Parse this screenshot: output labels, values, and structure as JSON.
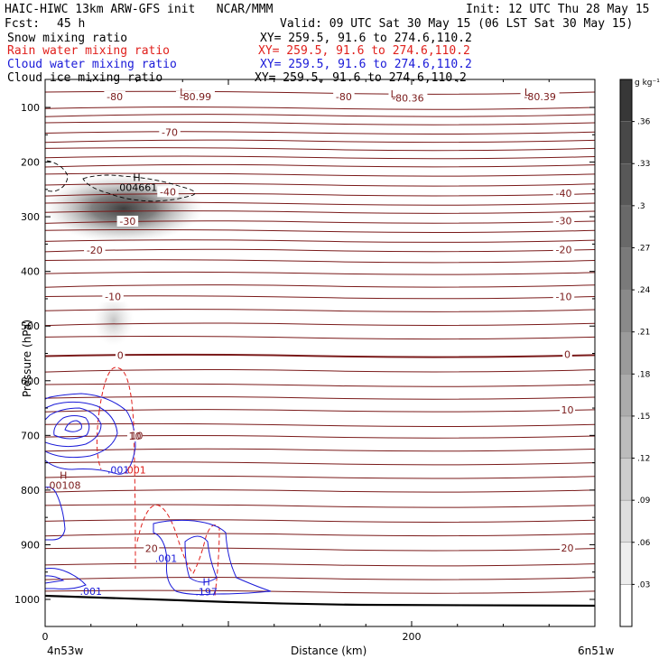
{
  "header": {
    "model_line": "HAIC-HIWC 13km ARW-GFS init   NCAR/MMM",
    "init_line": "Init: 12 UTC Thu 28 May 15",
    "fcst_label": "Fcst:",
    "fcst_value": "45 h",
    "valid_line": "Valid: 09 UTC Sat 30 May 15 (06 LST Sat 30 May 15)"
  },
  "fields": [
    {
      "name": "Snow mixing ratio",
      "xy": "XY= 259.5, 91.6 to 274.6,110.2",
      "color": "#000000"
    },
    {
      "name": "Rain water mixing ratio",
      "xy": "XY= 259.5, 91.6 to 274.6,110.2",
      "color": "#e0201c"
    },
    {
      "name": "Cloud water mixing ratio",
      "xy": "XY= 259.5, 91.6 to 274.6,110.2",
      "color": "#1a1ad8"
    },
    {
      "name": "Cloud ice mixing ratio",
      "xy": "XY= 259.5, 91.6 to 274.6,110.2",
      "color": "#000000"
    }
  ],
  "footer": {
    "left_label": "4n53w",
    "right_label": "6n51w"
  },
  "chart_data": {
    "type": "heatmap",
    "xlabel": "Distance (km)",
    "ylabel": "Pressure (hPa)",
    "xlim": [
      0,
      300
    ],
    "ylim": [
      1050,
      50
    ],
    "x_ticks": [
      0,
      200
    ],
    "y_ticks": [
      100,
      200,
      300,
      400,
      500,
      600,
      700,
      800,
      900,
      1000
    ],
    "colorbar": {
      "unit": "g kg⁻¹",
      "ticks": [
        0.03,
        0.06,
        0.09,
        0.12,
        0.15,
        0.18,
        0.21,
        0.24,
        0.27,
        0.3,
        0.33,
        0.36
      ],
      "tick_labels": [
        ".03",
        ".06",
        ".09",
        ".12",
        ".15",
        ".18",
        ".21",
        ".24",
        ".27",
        ".3",
        ".33",
        ".36"
      ],
      "range": [
        0,
        0.39
      ]
    },
    "temperature_contours": {
      "color": "#7a1a1a",
      "labels": [
        {
          "text": "-80",
          "x": 38,
          "p": 80
        },
        {
          "text": "-80.99",
          "x": 82,
          "p": 80
        },
        {
          "text": "-80",
          "x": 163,
          "p": 80
        },
        {
          "text": "-80.36",
          "x": 198,
          "p": 83
        },
        {
          "text": "-80.39",
          "x": 270,
          "p": 80
        },
        {
          "text": "-70",
          "x": 68,
          "p": 145
        },
        {
          "text": "-40",
          "x": 67,
          "p": 254
        },
        {
          "text": "-40",
          "x": 283,
          "p": 257
        },
        {
          "text": "-30",
          "x": 45,
          "p": 308
        },
        {
          "text": "-30",
          "x": 283,
          "p": 307
        },
        {
          "text": "-20",
          "x": 27,
          "p": 361
        },
        {
          "text": "-20",
          "x": 283,
          "p": 360
        },
        {
          "text": "-10",
          "x": 37,
          "p": 446
        },
        {
          "text": "-10",
          "x": 283,
          "p": 446
        },
        {
          "text": "0",
          "x": 41,
          "p": 553
        },
        {
          "text": "0",
          "x": 285,
          "p": 552
        },
        {
          "text": "10",
          "x": 49,
          "p": 701
        },
        {
          "text": "10",
          "x": 285,
          "p": 653
        },
        {
          "text": "20",
          "x": 58,
          "p": 907
        },
        {
          "text": "20",
          "x": 285,
          "p": 906
        }
      ],
      "lows": [
        {
          "text": "L",
          "x": 75,
          "p": 72
        },
        {
          "text": "L",
          "x": 190,
          "p": 75
        },
        {
          "text": "L",
          "x": 263,
          "p": 72
        }
      ]
    },
    "snow_max": {
      "text": "H",
      "label": ".004661",
      "x": 50,
      "p": 238
    },
    "cloud_water_labels": [
      {
        "text": ".001",
        "x": 40,
        "p": 763
      },
      {
        "text": ".001",
        "x": 66,
        "p": 925
      },
      {
        "text": ".001",
        "x": 25,
        "p": 985
      }
    ],
    "cloud_water_max": {
      "text": "H",
      "label": ".197",
      "x": 88,
      "p": 978
    },
    "rain_labels": [
      {
        "text": ".001",
        "x": 49,
        "p": 763
      }
    ],
    "ice_max": {
      "text": "H",
      "label": ".00108",
      "x": 10,
      "p": 783
    },
    "ice_labels": [
      {
        "text": "10",
        "x": 50,
        "p": 700
      }
    ]
  }
}
